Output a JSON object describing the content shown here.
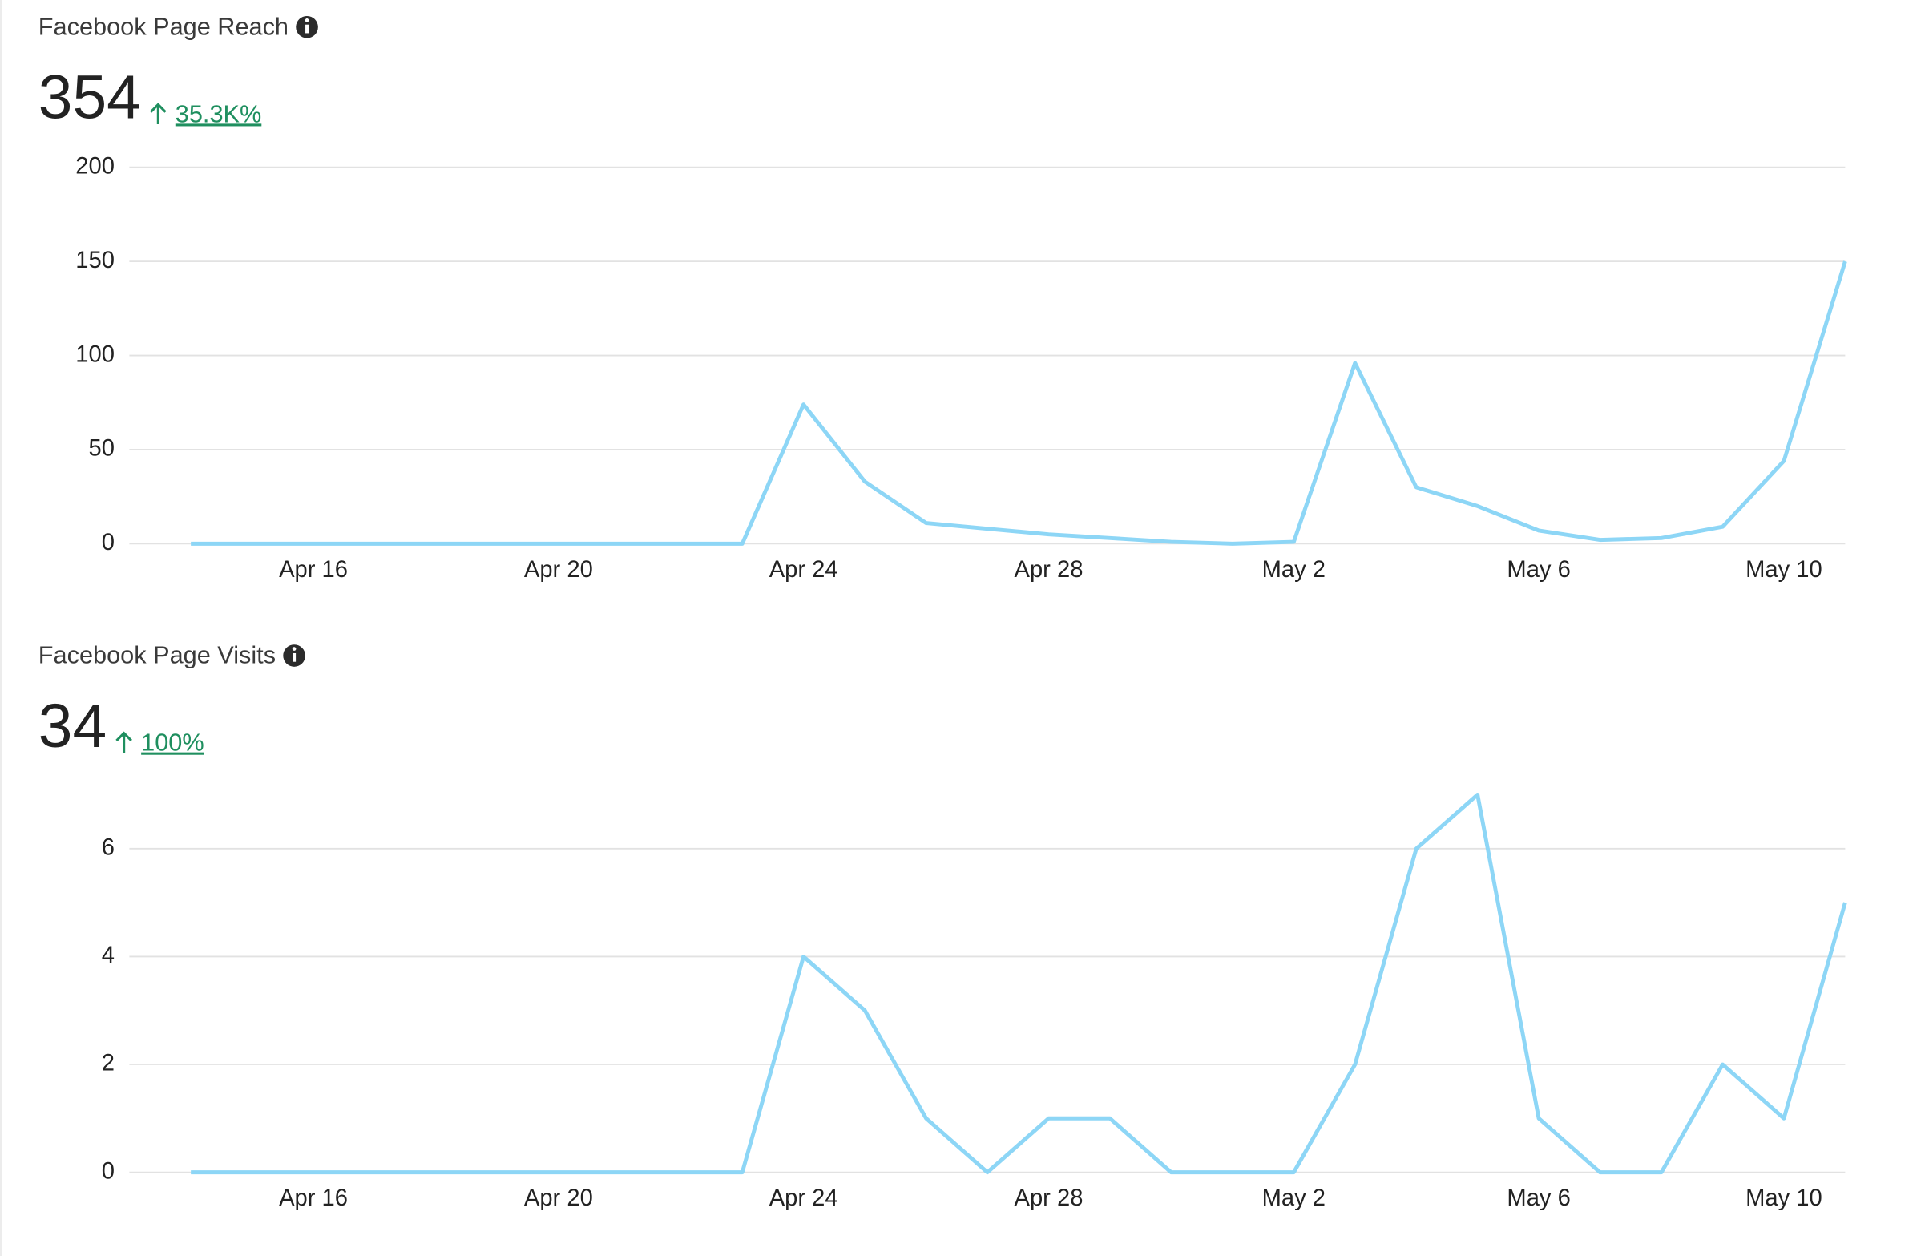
{
  "chart_data": [
    {
      "type": "line",
      "title": "Facebook Page Reach",
      "total": 354,
      "change": "35.3K%",
      "categories": [
        null,
        null,
        "Apr 16",
        null,
        null,
        null,
        "Apr 20",
        null,
        null,
        null,
        "Apr 24",
        null,
        null,
        null,
        "Apr 28",
        null,
        null,
        null,
        "May 2",
        null,
        null,
        null,
        "May 6",
        null,
        null,
        null,
        "May 10",
        null
      ],
      "values": [
        0,
        0,
        0,
        0,
        0,
        0,
        0,
        0,
        0,
        0,
        74,
        33,
        11,
        8,
        5,
        3,
        1,
        0,
        1,
        96,
        30,
        20,
        7,
        2,
        3,
        9,
        44,
        150
      ],
      "color": "#8dd6f6",
      "ylim": [
        0,
        200
      ],
      "yticks": [
        0,
        50,
        100,
        150,
        200
      ],
      "grid": true
    },
    {
      "type": "line",
      "title": "Facebook Page Visits",
      "total": 34,
      "change": "100%",
      "categories": [
        null,
        null,
        "Apr 16",
        null,
        null,
        null,
        "Apr 20",
        null,
        null,
        null,
        "Apr 24",
        null,
        null,
        null,
        "Apr 28",
        null,
        null,
        null,
        "May 2",
        null,
        null,
        null,
        "May 6",
        null,
        null,
        null,
        "May 10",
        null
      ],
      "values": [
        0,
        0,
        0,
        0,
        0,
        0,
        0,
        0,
        0,
        0,
        4,
        3,
        1,
        0,
        1,
        1,
        0,
        0,
        0,
        2,
        6,
        7,
        1,
        0,
        0,
        2,
        1,
        5
      ],
      "color": "#8dd6f6",
      "ylim": [
        0,
        7
      ],
      "yticks": [
        0,
        2,
        4,
        6
      ],
      "grid": true
    }
  ]
}
